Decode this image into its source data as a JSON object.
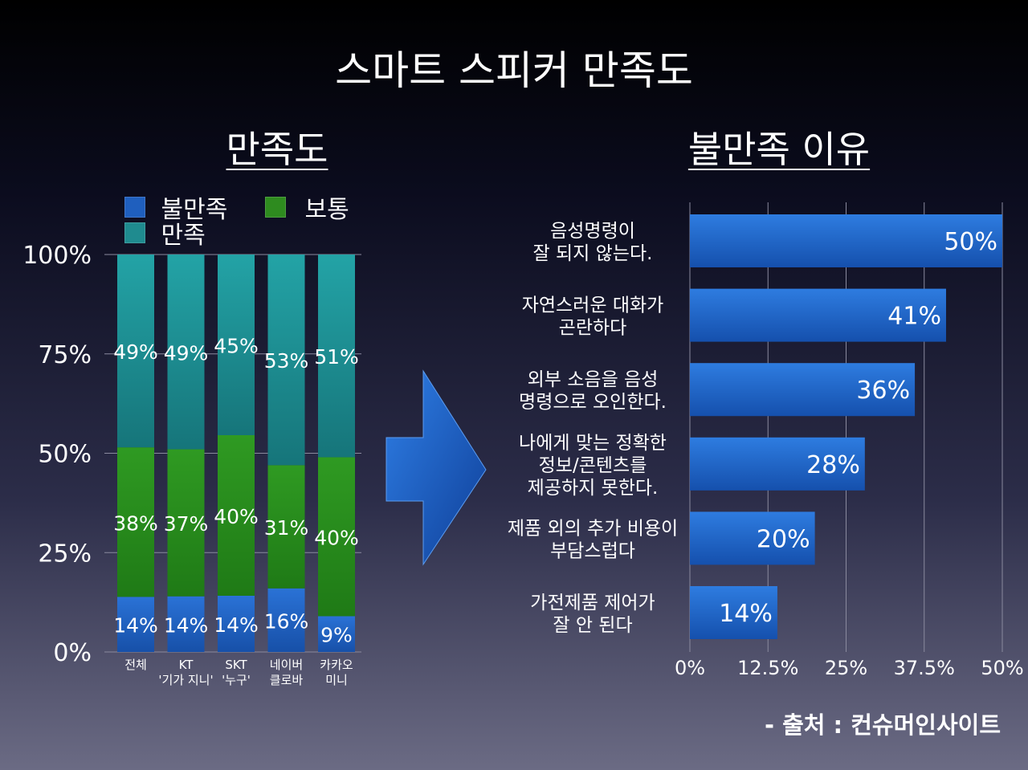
{
  "title": "스마트 스피커 만족도",
  "source": "- 출처 : 컨슈머인사이트",
  "colors": {
    "dissatisfied": "#1f5fbe",
    "normal": "#2e8b1f",
    "satisfied": "#1f8b8f",
    "bar": "#1f62c4"
  },
  "chart_data": [
    {
      "type": "bar",
      "stacked": true,
      "title": "만족도",
      "categories": [
        [
          "전체"
        ],
        [
          "KT",
          "'기가 지니'"
        ],
        [
          "SKT",
          "'누구'"
        ],
        [
          "네이버",
          "클로바"
        ],
        [
          "카카오",
          "미니"
        ]
      ],
      "series": [
        {
          "name": "불만족",
          "values": [
            14,
            14,
            14,
            16,
            9
          ],
          "labels": [
            "14%",
            "14%",
            "14%",
            "16%",
            "9%"
          ]
        },
        {
          "name": "보통",
          "values": [
            38,
            37,
            40,
            31,
            40
          ],
          "labels": [
            "38%",
            "37%",
            "40%",
            "31%",
            "40%"
          ]
        },
        {
          "name": "만족",
          "values": [
            49,
            49,
            45,
            53,
            51
          ],
          "labels": [
            "49%",
            "49%",
            "45%",
            "53%",
            "51%"
          ]
        }
      ],
      "yticks": [
        "0%",
        "25%",
        "50%",
        "75%",
        "100%"
      ],
      "ylim": [
        0,
        100
      ],
      "grid": true,
      "legend": "top"
    },
    {
      "type": "bar",
      "orientation": "horizontal",
      "title": "불만족 이유",
      "categories": [
        [
          "음성명령이",
          "잘 되지 않는다."
        ],
        [
          "자연스러운 대화가",
          "곤란하다"
        ],
        [
          "외부 소음을 음성",
          "명령으로 오인한다."
        ],
        [
          "나에게 맞는 정확한",
          "정보/콘텐츠를",
          "제공하지 못한다."
        ],
        [
          "제품 외의 추가 비용이",
          "부담스럽다"
        ],
        [
          "가전제품 제어가",
          "잘 안 된다"
        ]
      ],
      "values": [
        50,
        41,
        36,
        28,
        20,
        14
      ],
      "labels": [
        "50%",
        "41%",
        "36%",
        "28%",
        "20%",
        "14%"
      ],
      "xticks": [
        "0%",
        "12.5%",
        "25%",
        "37.5%",
        "50%"
      ],
      "xlim": [
        0,
        50
      ],
      "grid": true
    }
  ]
}
